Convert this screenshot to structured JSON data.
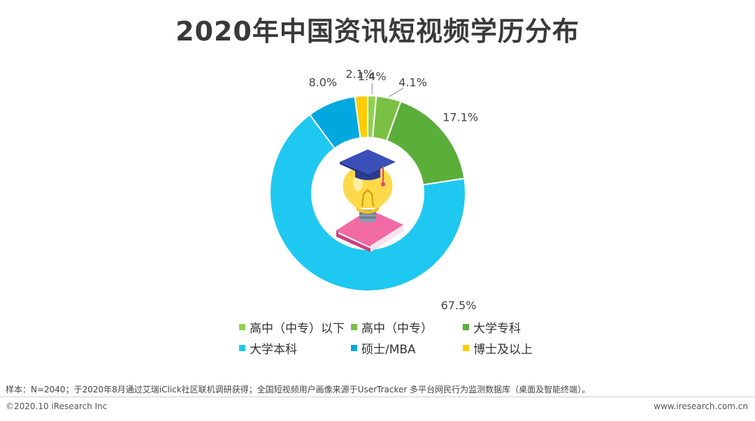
{
  "title": "2020年中国资讯短视频学历分布",
  "chart_data": {
    "type": "pie",
    "style": "donut",
    "title": "2020年中国资讯短视频学历分布",
    "legend_position": "bottom",
    "series": [
      {
        "name": "高中（中专）以下",
        "value": 1.4,
        "label": "1.4%",
        "color": "#92d050"
      },
      {
        "name": "高中（中专）",
        "value": 4.1,
        "label": "4.1%",
        "color": "#7ac143"
      },
      {
        "name": "大学专科",
        "value": 17.1,
        "label": "17.1%",
        "color": "#5aae3a"
      },
      {
        "name": "大学本科",
        "value": 67.5,
        "label": "67.5%",
        "color": "#1fc8f0"
      },
      {
        "name": "硕士/MBA",
        "value": 8.0,
        "label": "8.0%",
        "color": "#00a8e0"
      },
      {
        "name": "博士及以上",
        "value": 2.1,
        "label": "2.1%",
        "color": "#ffcc00"
      }
    ]
  },
  "footnote": "样本：N=2040；于2020年8月通过艾瑞iClick社区联机调研获得；全国短视频用户画像来源于UserTracker 多平台网民行为监测数据库（桌面及智能终端）。",
  "footer": {
    "copyright": "©2020.10 iResearch Inc",
    "website": "www.iresearch.com.cn"
  }
}
